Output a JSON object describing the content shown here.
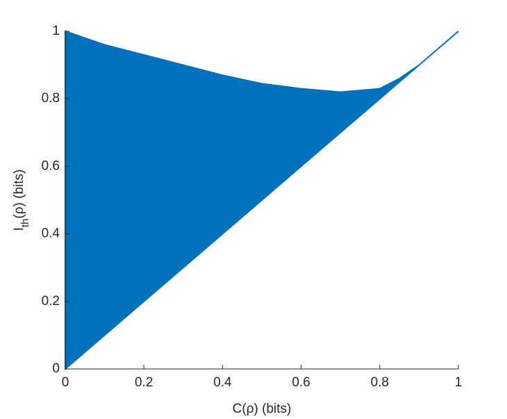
{
  "chart_data": {
    "type": "area",
    "xlabel": "C(ρ) (bits)",
    "ylabel": {
      "main": "I",
      "sub": "th",
      "rest": "(ρ) (bits)"
    },
    "x": [
      0,
      0.1,
      0.2,
      0.3,
      0.4,
      0.5,
      0.6,
      0.7,
      0.8,
      0.85,
      0.9,
      1
    ],
    "upper": [
      1,
      0.96,
      0.93,
      0.9,
      0.87,
      0.845,
      0.83,
      0.82,
      0.83,
      0.86,
      0.9,
      1
    ],
    "lower": [
      0,
      0.1,
      0.2,
      0.3,
      0.4,
      0.5,
      0.6,
      0.7,
      0.8,
      0.85,
      0.9,
      1
    ],
    "color": "#0072bd",
    "xlim": [
      0,
      1
    ],
    "ylim": [
      0,
      1
    ],
    "xticks": [
      0,
      0.2,
      0.4,
      0.6,
      0.8,
      1
    ],
    "yticks": [
      0,
      0.2,
      0.4,
      0.6,
      0.8,
      1
    ]
  }
}
